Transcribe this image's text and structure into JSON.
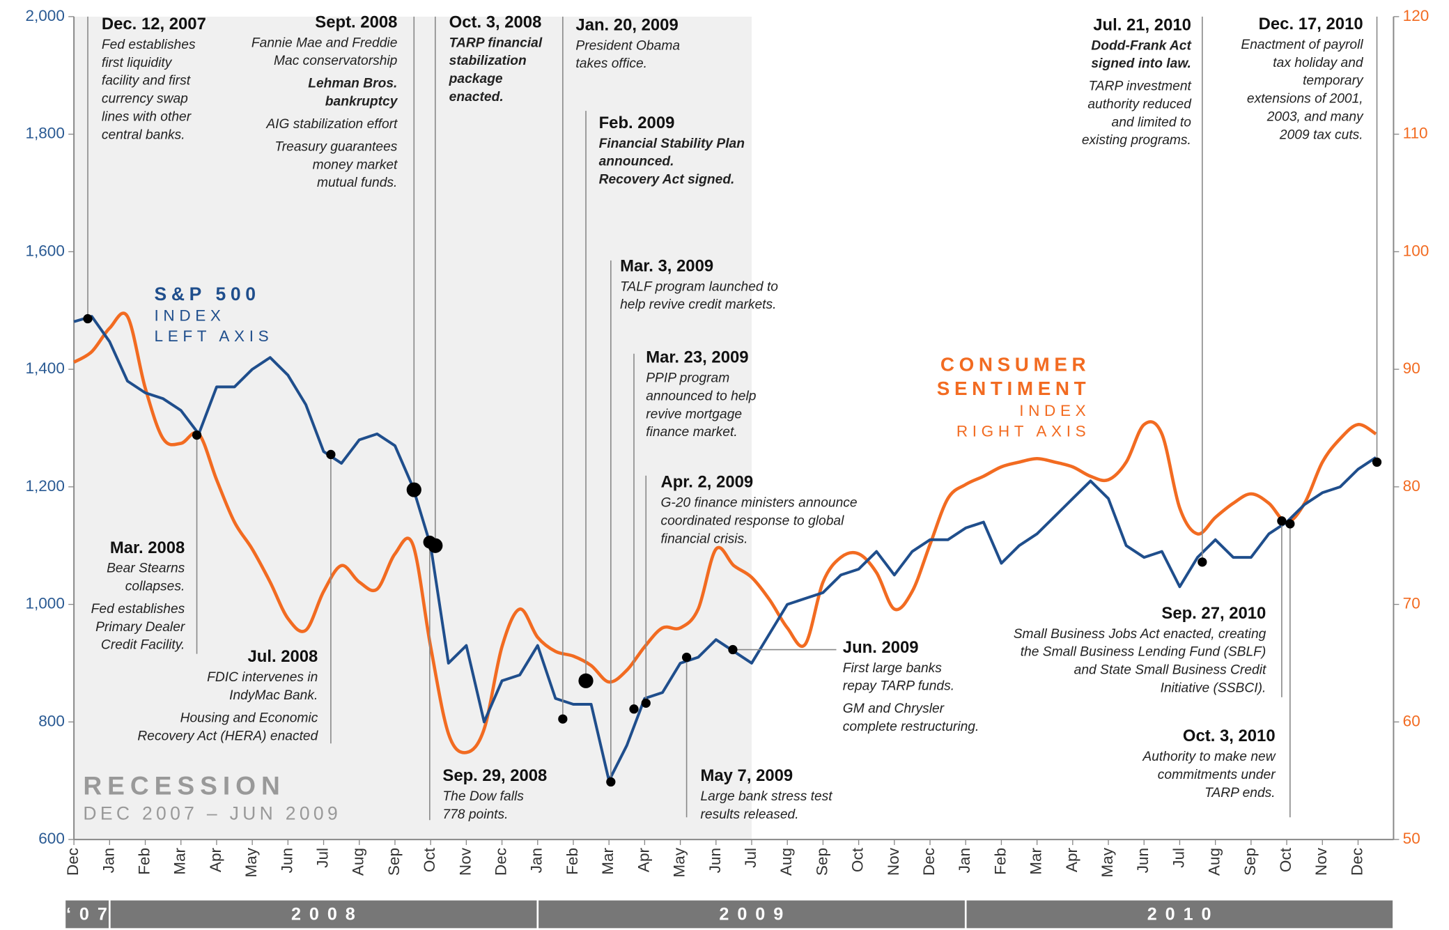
{
  "chart_data": {
    "type": "line",
    "categories": [
      "Dec",
      null,
      "Jan",
      null,
      "Feb",
      null,
      "Mar",
      null,
      "Apr",
      null,
      "May",
      null,
      "Jun",
      null,
      "Jul",
      null,
      "Aug",
      null,
      "Sep",
      null,
      "Oct",
      null,
      "Nov",
      null,
      "Dec",
      null,
      "Jan",
      null,
      "Feb",
      null,
      "Mar",
      null,
      "Apr",
      null,
      "May",
      null,
      "Jun",
      null,
      "Jul",
      null,
      "Aug",
      null,
      "Sep",
      null,
      "Oct",
      null,
      "Nov",
      null,
      "Dec",
      null,
      "Jan",
      null,
      "Feb",
      null,
      "Mar",
      null,
      "Apr",
      null,
      "May",
      null,
      "Jun",
      null,
      "Jul",
      null,
      "Aug",
      null,
      "Sep",
      null,
      "Oct",
      null,
      "Nov",
      null,
      "Dec",
      null
    ],
    "years": [
      "‘07",
      "2008",
      "2009",
      "2010"
    ],
    "series": [
      {
        "name": "S&P 500",
        "sublabels": [
          "INDEX",
          "LEFT AXIS"
        ],
        "color": "#1f4e8c",
        "axis": "y",
        "values": [
          1481,
          1490,
          1447,
          1380,
          1360,
          1350,
          1330,
          1290,
          1370,
          1370,
          1400,
          1420,
          1390,
          1340,
          1260,
          1240,
          1280,
          1290,
          1270,
          1200,
          1100,
          900,
          930,
          800,
          870,
          880,
          930,
          840,
          830,
          830,
          700,
          760,
          840,
          850,
          900,
          910,
          940,
          920,
          900,
          950,
          1000,
          1010,
          1020,
          1050,
          1060,
          1090,
          1050,
          1090,
          1110,
          1110,
          1130,
          1140,
          1070,
          1100,
          1120,
          1150,
          1180,
          1210,
          1180,
          1100,
          1080,
          1090,
          1030,
          1080,
          1110,
          1080,
          1080,
          1120,
          1140,
          1170,
          1190,
          1200,
          1230,
          1250
        ]
      },
      {
        "name": [
          "CONSUMER",
          "SENTIMENT"
        ],
        "sublabels": [
          "INDEX",
          "RIGHT AXIS"
        ],
        "color": "#f26b21",
        "axis": "y2",
        "values": [
          90.6,
          91.5,
          93.5,
          94.5,
          88.4,
          84.1,
          83.7,
          84.5,
          80.6,
          77,
          74.7,
          71.9,
          68.8,
          67.8,
          71.1,
          73.3,
          71.9,
          71.3,
          74.3,
          75.1,
          66.4,
          59,
          57.4,
          59.4,
          66.4,
          69.6,
          67.2,
          66,
          65.6,
          64.8,
          63.4,
          64.4,
          66.4,
          68,
          68,
          69.6,
          74.7,
          73.3,
          72.3,
          70.4,
          68,
          66.6,
          71.9,
          74,
          74.3,
          72.7,
          69.6,
          71.1,
          75.1,
          79,
          80.2,
          80.9,
          81.7,
          82.1,
          82.4,
          82.1,
          81.7,
          80.9,
          80.6,
          82.1,
          85.3,
          84.5,
          78.2,
          76,
          77.4,
          78.6,
          79.4,
          78.6,
          77,
          78.6,
          82.1,
          84.1,
          85.3,
          84.5
        ]
      }
    ],
    "ylim": [
      600,
      2000
    ],
    "yticks": [
      600,
      800,
      {
        "value": 1000,
        "label": "1,000"
      },
      {
        "value": 1200,
        "label": "1,200"
      },
      {
        "value": 1400,
        "label": "1,400"
      },
      {
        "value": 1600,
        "label": "1,600"
      },
      {
        "value": 1800,
        "label": "1,800"
      },
      {
        "value": 2000,
        "label": "2,000"
      }
    ],
    "y2lim": [
      50,
      120
    ],
    "y2ticks": [
      50,
      60,
      70,
      80,
      90,
      100,
      110,
      120
    ],
    "recession": {
      "label": "RECESSION",
      "period": "DEC 2007 – JUN 2009",
      "start_index": 0,
      "end_index": 38
    },
    "annotations": [
      {
        "title": "Dec. 12, 2007",
        "value": 1486,
        "paragraphs": [
          {
            "lines": [
              "Fed establishes",
              "first liquidity",
              "facility and first",
              "currency swap",
              "lines with other",
              "central banks."
            ]
          }
        ]
      },
      {
        "title": "Sept. 2008",
        "value": 1195,
        "paragraphs": [
          {
            "lines": [
              "Fannie Mae and Freddie",
              "Mac conservatorship"
            ]
          },
          {
            "bold": true,
            "lines": [
              "Lehman Bros.",
              "bankruptcy"
            ]
          },
          {
            "lines": [
              "AIG stabilization effort"
            ]
          },
          {
            "lines": [
              "Treasury guarantees",
              "money market",
              "mutual funds."
            ]
          }
        ]
      },
      {
        "title": "Oct. 3, 2008",
        "value": 1100,
        "paragraphs": [
          {
            "bold": true,
            "lines": [
              "TARP financial",
              "stabilization",
              "package",
              "enacted."
            ]
          }
        ]
      },
      {
        "title": "Jan. 20, 2009",
        "value": 805,
        "paragraphs": [
          {
            "lines": [
              "President Obama",
              "takes office."
            ]
          }
        ]
      },
      {
        "title": "Feb. 2009",
        "value": 870,
        "paragraphs": [
          {
            "bold": true,
            "lines": [
              "Financial Stability Plan",
              "announced.",
              "Recovery Act signed."
            ]
          }
        ]
      },
      {
        "title": "Mar. 3, 2009",
        "value": 698,
        "paragraphs": [
          {
            "lines": [
              "TALF program launched to",
              "help revive credit markets."
            ]
          }
        ]
      },
      {
        "title": "Mar. 23, 2009",
        "value": 822,
        "paragraphs": [
          {
            "lines": [
              "PPIP program",
              "announced to help",
              "revive mortgage",
              "finance market."
            ]
          }
        ]
      },
      {
        "title": "Apr. 2, 2009",
        "value": 832,
        "paragraphs": [
          {
            "lines": [
              "G-20 finance ministers announce",
              "coordinated response to global",
              "financial crisis."
            ]
          }
        ]
      },
      {
        "title": "Mar. 2008",
        "value": 1288,
        "paragraphs": [
          {
            "lines": [
              "Bear Stearns",
              "collapses."
            ]
          },
          {
            "lines": [
              "Fed establishes",
              "Primary Dealer",
              "Credit Facility."
            ]
          }
        ]
      },
      {
        "title": "Jul. 2008",
        "value": 1255,
        "paragraphs": [
          {
            "lines": [
              "FDIC intervenes in",
              "IndyMac Bank."
            ]
          },
          {
            "lines": [
              "Housing and Economic",
              "Recovery Act (HERA) enacted"
            ]
          }
        ]
      },
      {
        "title": "Sep. 29, 2008",
        "value": 1106,
        "paragraphs": [
          {
            "lines": [
              "The Dow falls",
              "778 points."
            ]
          }
        ]
      },
      {
        "title": "May 7, 2009",
        "value": 910,
        "paragraphs": [
          {
            "lines": [
              "Large bank stress test",
              "results released."
            ]
          }
        ]
      },
      {
        "title": "Jun. 2009",
        "value": 923,
        "paragraphs": [
          {
            "lines": [
              "First large banks",
              "repay TARP funds."
            ]
          },
          {
            "lines": [
              "GM and Chrysler",
              "complete restructuring."
            ]
          }
        ]
      },
      {
        "title": "Jul. 21, 2010",
        "value": 1072,
        "paragraphs": [
          {
            "bold": true,
            "lines": [
              "Dodd-Frank Act",
              "signed into law."
            ]
          },
          {
            "lines": [
              "TARP investment",
              "authority reduced",
              "and limited to",
              "existing programs."
            ]
          }
        ]
      },
      {
        "title": "Dec. 17, 2010",
        "value": 1242,
        "paragraphs": [
          {
            "lines": [
              "Enactment of payroll",
              "tax holiday and",
              "temporary",
              "extensions of 2001,",
              "2003, and many",
              "2009 tax cuts."
            ]
          }
        ]
      },
      {
        "title": "Sep. 27, 2010",
        "value": 1142,
        "paragraphs": [
          {
            "lines": [
              "Small Business Jobs Act enacted, creating",
              "the Small Business Lending Fund (SBLF)",
              "and State Small Business Credit",
              "Initiative (SSBCI)."
            ]
          }
        ]
      },
      {
        "title": "Oct. 3, 2010",
        "value": 1137,
        "paragraphs": [
          {
            "lines": [
              "Authority to make new",
              "commitments under",
              "TARP ends."
            ]
          }
        ]
      }
    ]
  }
}
